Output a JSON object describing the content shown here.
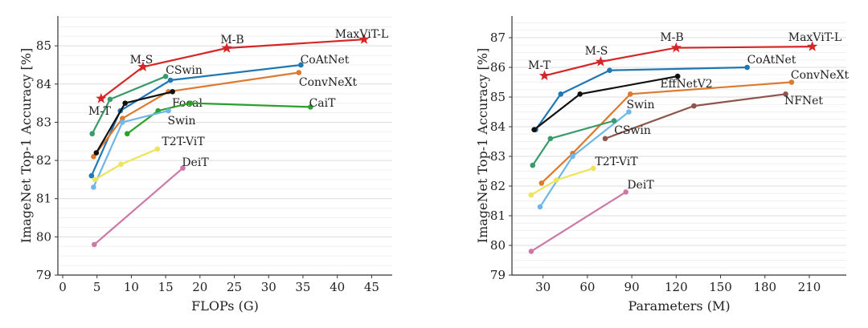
{
  "chart_data": [
    {
      "type": "line",
      "xlabel": "FLOPs (G)",
      "ylabel": "ImageNet Top-1 Accuracy [%]",
      "xlim": [
        -0.7,
        48
      ],
      "ylim": [
        79,
        85.78
      ],
      "xticks": [
        0,
        5,
        10,
        15,
        20,
        25,
        30,
        35,
        40,
        45
      ],
      "yticks": [
        79,
        80,
        81,
        82,
        83,
        84,
        85
      ],
      "grid": "horizontal",
      "series": [
        {
          "name": "MaxViT",
          "color": "#d62728",
          "marker": "star",
          "x": [
            5.6,
            11.7,
            23.9,
            43.9
          ],
          "y": [
            83.62,
            84.45,
            84.94,
            85.17
          ],
          "point_labels": [
            "M-T",
            "M-S",
            "M-B",
            "MaxViT-L"
          ]
        },
        {
          "name": "CoAtNet",
          "color": "#1f77b4",
          "marker": "dot",
          "x": [
            4.2,
            8.4,
            15.7,
            34.7
          ],
          "y": [
            81.6,
            83.3,
            84.1,
            84.5
          ]
        },
        {
          "name": "ConvNeXt",
          "color": "#dd7a30",
          "marker": "dot",
          "x": [
            4.5,
            8.7,
            15.4,
            34.4
          ],
          "y": [
            82.1,
            83.1,
            83.8,
            84.3
          ]
        },
        {
          "name": "Focal",
          "color": "#111111",
          "marker": "dot",
          "x": [
            4.9,
            9.1,
            16.0
          ],
          "y": [
            82.2,
            83.5,
            83.8
          ]
        },
        {
          "name": "CSwin",
          "color": "#3a9a6a",
          "marker": "dot",
          "x": [
            4.3,
            6.9,
            15.0
          ],
          "y": [
            82.7,
            83.6,
            84.2
          ]
        },
        {
          "name": "CaiT",
          "color": "#2ca02c",
          "marker": "dot",
          "x": [
            9.4,
            13.9,
            18.6,
            36.1
          ],
          "y": [
            82.7,
            83.3,
            83.5,
            83.4
          ]
        },
        {
          "name": "Swin",
          "color": "#6fb7e8",
          "marker": "dot",
          "x": [
            4.5,
            8.7,
            15.4
          ],
          "y": [
            81.3,
            83.0,
            83.3
          ]
        },
        {
          "name": "T2T-ViT",
          "color": "#ece45a",
          "marker": "dot",
          "x": [
            4.7,
            8.5,
            13.8
          ],
          "y": [
            81.5,
            81.9,
            82.3
          ]
        },
        {
          "name": "DeiT",
          "color": "#cc79a7",
          "marker": "dot",
          "x": [
            4.6,
            17.5
          ],
          "y": [
            79.8,
            81.8
          ]
        }
      ]
    },
    {
      "type": "line",
      "xlabel": "Parameters (M)",
      "ylabel": "ImageNet Top-1 Accuracy [%]",
      "xlim": [
        9,
        235
      ],
      "ylim": [
        79,
        87.73
      ],
      "xticks": [
        30,
        60,
        90,
        120,
        150,
        180,
        210
      ],
      "yticks": [
        79,
        80,
        81,
        82,
        83,
        84,
        85,
        86,
        87
      ],
      "grid": "horizontal",
      "series": [
        {
          "name": "MaxViT",
          "color": "#d62728",
          "marker": "star",
          "x": [
            31,
            69,
            120,
            212
          ],
          "y": [
            85.72,
            86.19,
            86.66,
            86.7
          ],
          "point_labels": [
            "M-T",
            "M-S",
            "M-B",
            "MaxViT-L"
          ]
        },
        {
          "name": "CoAtNet",
          "color": "#1f77b4",
          "marker": "dot",
          "x": [
            25,
            42,
            75,
            168
          ],
          "y": [
            83.9,
            85.1,
            85.9,
            86.0
          ]
        },
        {
          "name": "EffNetV2",
          "color": "#111111",
          "marker": "dot",
          "x": [
            24,
            55,
            121
          ],
          "y": [
            83.9,
            85.1,
            85.7
          ]
        },
        {
          "name": "ConvNeXt",
          "color": "#dd7a30",
          "marker": "dot",
          "x": [
            29,
            50,
            89,
            198
          ],
          "y": [
            82.1,
            83.1,
            85.1,
            85.5
          ]
        },
        {
          "name": "NFNet",
          "color": "#8c564b",
          "marker": "dot",
          "x": [
            72,
            132,
            194
          ],
          "y": [
            83.6,
            84.7,
            85.1
          ]
        },
        {
          "name": "Swin",
          "color": "#6fb7e8",
          "marker": "dot",
          "x": [
            28,
            50,
            88
          ],
          "y": [
            81.3,
            83.0,
            84.5
          ]
        },
        {
          "name": "CSwin",
          "color": "#3a9a6a",
          "marker": "dot",
          "x": [
            23,
            35,
            78
          ],
          "y": [
            82.7,
            83.6,
            84.2
          ]
        },
        {
          "name": "T2T-ViT",
          "color": "#ece45a",
          "marker": "dot",
          "x": [
            22,
            39,
            64
          ],
          "y": [
            81.7,
            82.2,
            82.6
          ]
        },
        {
          "name": "DeiT",
          "color": "#cc79a7",
          "marker": "dot",
          "x": [
            22,
            86
          ],
          "y": [
            79.8,
            81.8
          ]
        }
      ]
    }
  ]
}
